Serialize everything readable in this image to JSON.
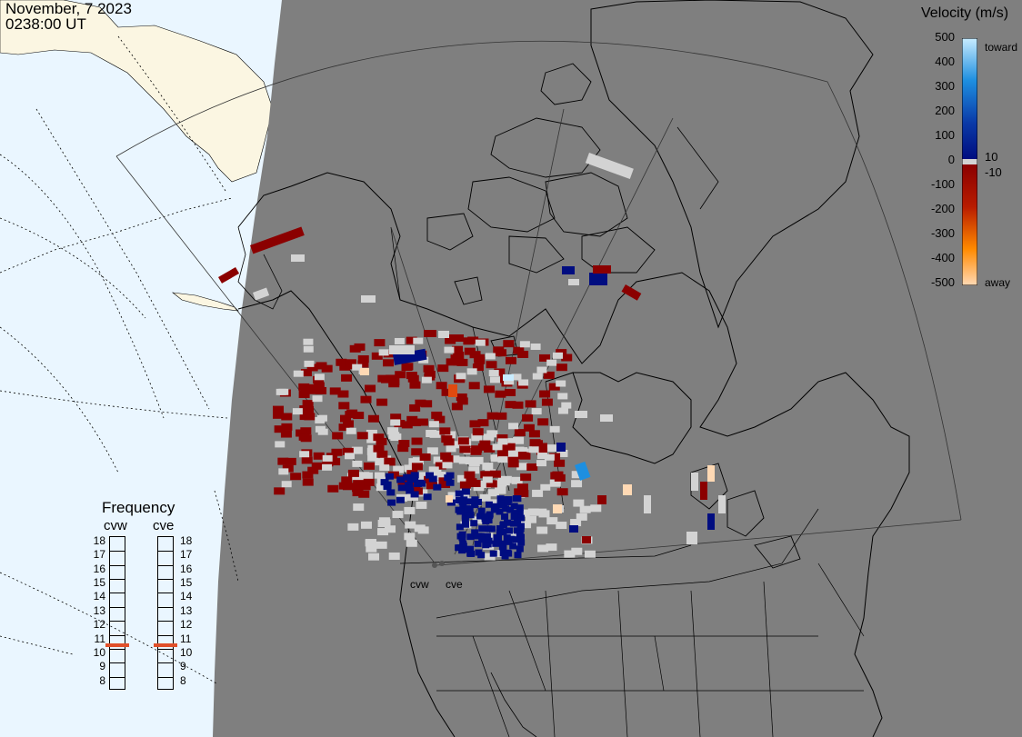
{
  "header": {
    "date": "November, 7 2023",
    "time": "0238:00 UT"
  },
  "legend": {
    "title": "Velocity (m/s)",
    "ticks": [
      "500",
      "400",
      "300",
      "200",
      "100",
      "0",
      "-100",
      "-200",
      "-300",
      "-400",
      "-500"
    ],
    "toward_label": "toward",
    "away_label": "away",
    "mark_pos": "10",
    "mark_neg": "-10",
    "colors": {
      "toward_light": "#c8ecff",
      "toward_mid": "#1e8fe0",
      "toward_dark": "#000d80",
      "ground_scatter": "#d3d3d3",
      "away_dark": "#8b0000",
      "away_mid": "#e04a10",
      "away_light": "#ffd9b4",
      "land_night": "#7f7f7f",
      "ocean": "#eaf6ff",
      "land_day": "#fbf6e2"
    }
  },
  "frequency": {
    "title": "Frequency",
    "radars": [
      {
        "name": "cvw",
        "value_mhz": 10.7
      },
      {
        "name": "cve",
        "value_mhz": 10.7
      }
    ],
    "scale": [
      "18",
      "17",
      "16",
      "15",
      "14",
      "13",
      "12",
      "11",
      "10",
      "9",
      "8"
    ]
  },
  "sites": [
    {
      "name": "cvw"
    },
    {
      "name": "cve"
    }
  ]
}
